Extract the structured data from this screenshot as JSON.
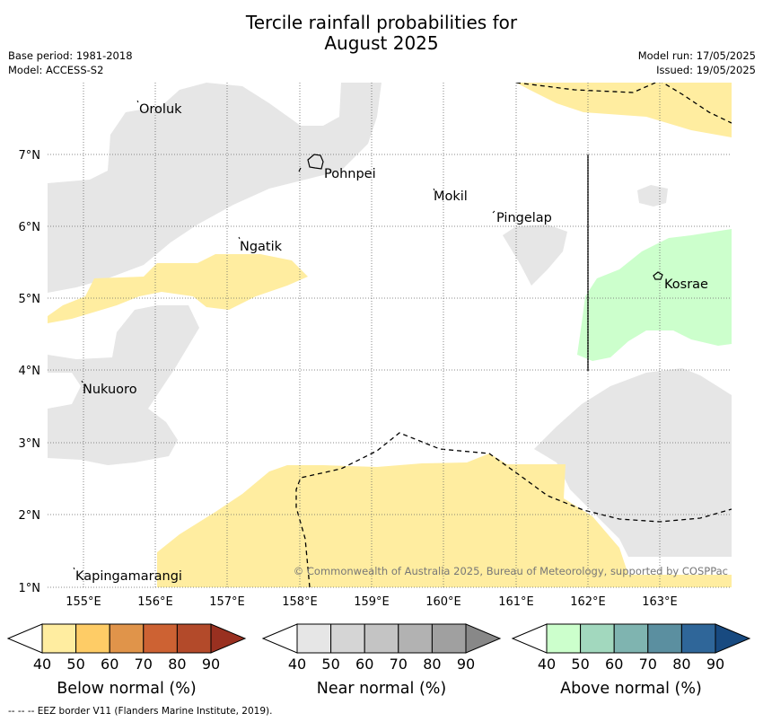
{
  "title": {
    "line1": "Tercile rainfall probabilities for",
    "line2": "August 2025"
  },
  "header_left": {
    "base_period": "Base period: 1981-2018",
    "model": "Model: ACCESS-S2"
  },
  "header_right": {
    "model_run": "Model run: 17/05/2025",
    "issued": "Issued: 19/05/2025"
  },
  "map": {
    "x_ticks": [
      "155°E",
      "156°E",
      "157°E",
      "158°E",
      "159°E",
      "160°E",
      "161°E",
      "162°E",
      "163°E"
    ],
    "y_ticks": [
      "7°N",
      "6°N",
      "5°N",
      "4°N",
      "3°N",
      "2°N",
      "1°N"
    ],
    "places": [
      "Oroluk",
      "Pohnpei",
      "Mokil",
      "Pingelap",
      "Ngatik",
      "Kosrae",
      "Nukuoro",
      "Kapingamarangi"
    ],
    "copyright": "© Commonwealth of Australia 2025, Bureau of Meteorology, supported by COSPPac"
  },
  "legends": [
    {
      "name": "Below normal (%)",
      "ticks": [
        "40",
        "50",
        "60",
        "70",
        "80",
        "90"
      ],
      "colors": [
        "#ffffff",
        "#ffeda0",
        "#fecc66",
        "#e0944a",
        "#cd6233",
        "#b34a2a",
        "#993020"
      ]
    },
    {
      "name": "Near normal (%)",
      "ticks": [
        "40",
        "50",
        "60",
        "70",
        "80",
        "90"
      ],
      "colors": [
        "#ffffff",
        "#e6e6e6",
        "#d5d5d5",
        "#c4c4c4",
        "#b2b2b2",
        "#a0a0a0",
        "#888888"
      ]
    },
    {
      "name": "Above normal (%)",
      "ticks": [
        "40",
        "50",
        "60",
        "70",
        "80",
        "90"
      ],
      "colors": [
        "#ffffff",
        "#ccffcc",
        "#a2d8be",
        "#7fb4b0",
        "#5b8fa0",
        "#2f6699",
        "#184a80"
      ]
    }
  ],
  "footer": "-- -- -- EEZ border V11 (Flanders Marine Institute, 2019)."
}
